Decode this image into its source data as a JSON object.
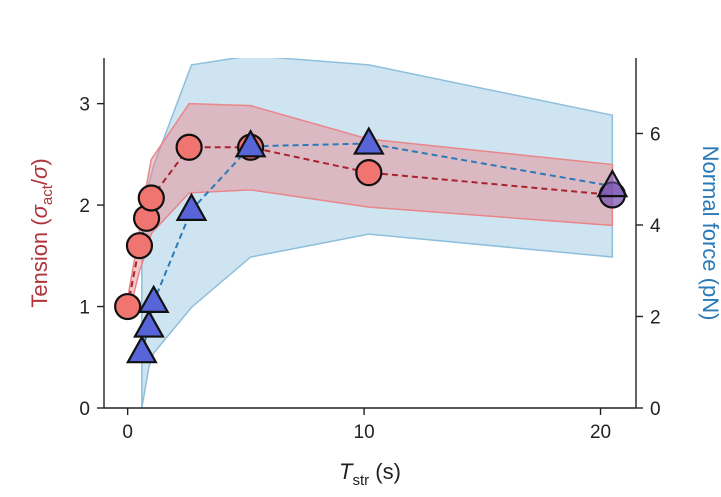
{
  "chart_data": {
    "type": "line",
    "xlabel": "T",
    "xlabel_sub": "str",
    "xlabel_unit": " (s)",
    "ylabel_left_main": "Tension  (",
    "ylabel_left_sigma1": "σ",
    "ylabel_left_sub": "act",
    "ylabel_left_slash": "/",
    "ylabel_left_sigma2": "σ",
    "ylabel_left_close": ")",
    "ylabel_right": "Normal force (pN)",
    "xlim": [
      -1,
      21.5
    ],
    "ylim_left": [
      0,
      3.45
    ],
    "ylim_right": [
      0,
      7.65
    ],
    "xticks": [
      0,
      10,
      20
    ],
    "yticks_left": [
      0,
      1,
      2,
      3
    ],
    "yticks_right": [
      0,
      2,
      4,
      6
    ],
    "grid": false,
    "colors": {
      "tension_line": "#a8232e",
      "tension_marker": "#f07470",
      "tension_band": "#e8868a",
      "force_line": "#2a7ab8",
      "force_marker": "#5865d9",
      "force_band": "#8dbfdd",
      "last_marker": "#7a58b5"
    },
    "series": [
      {
        "axis": "left",
        "marker": "circle",
        "x": [
          0.0,
          0.5,
          0.8,
          1.0,
          2.6,
          5.2,
          10.2,
          20.5
        ],
        "y": [
          1.0,
          1.6,
          1.87,
          2.07,
          2.57,
          2.57,
          2.32,
          2.1
        ],
        "band_upper": [
          1.08,
          1.75,
          2.2,
          2.45,
          3.0,
          2.98,
          2.65,
          2.4
        ],
        "band_lower": [
          0.88,
          1.35,
          1.55,
          1.72,
          2.12,
          2.15,
          1.98,
          1.8
        ]
      },
      {
        "axis": "right",
        "marker": "triangle",
        "x": [
          0.6,
          0.9,
          1.1,
          2.7,
          5.2,
          10.2,
          20.5
        ],
        "y": [
          1.22,
          1.78,
          2.32,
          4.33,
          5.72,
          5.78,
          4.85
        ],
        "band_upper": [
          3.9,
          4.9,
          5.3,
          7.5,
          7.7,
          7.5,
          6.4
        ],
        "band_lower": [
          0.0,
          0.9,
          1.2,
          2.2,
          3.3,
          3.8,
          3.3
        ]
      }
    ]
  }
}
